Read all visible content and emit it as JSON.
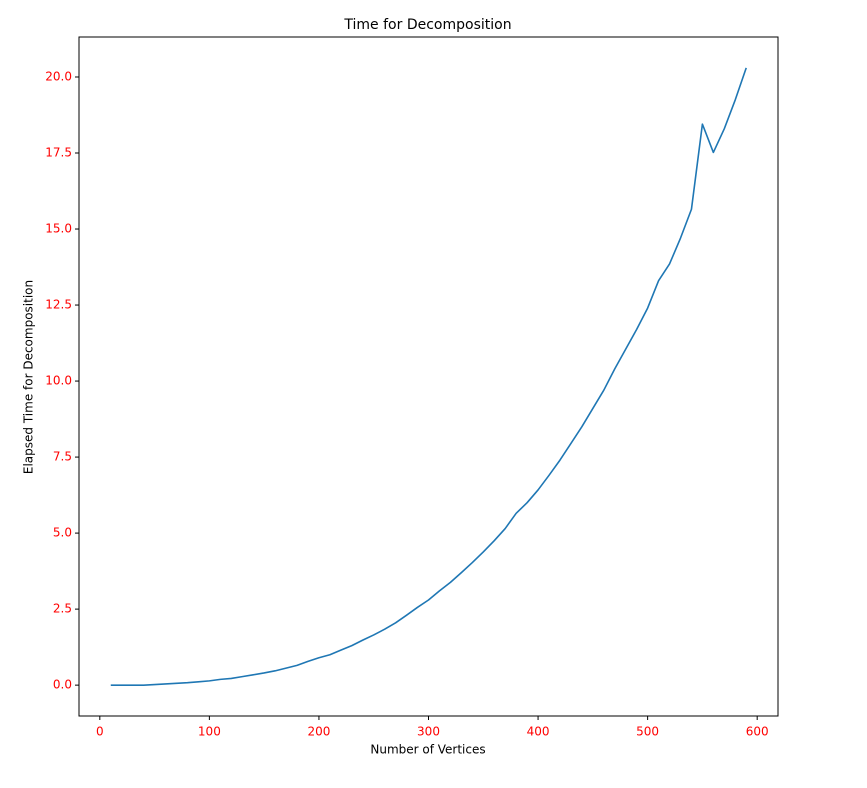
{
  "chart_data": {
    "type": "line",
    "title": "Time for Decomposition",
    "x_label": "Number of Vertices",
    "y_label": "Elapsed Time for Decomposition",
    "x": [
      10,
      20,
      30,
      40,
      50,
      60,
      70,
      80,
      90,
      100,
      110,
      120,
      130,
      140,
      150,
      160,
      170,
      180,
      190,
      200,
      210,
      220,
      230,
      240,
      250,
      260,
      270,
      280,
      290,
      300,
      310,
      320,
      330,
      340,
      350,
      360,
      370,
      380,
      390,
      400,
      410,
      420,
      430,
      440,
      450,
      460,
      470,
      480,
      490,
      500,
      510,
      520,
      530,
      540,
      550,
      560,
      570,
      580,
      590
    ],
    "values": [
      0.0,
      0.0,
      0.0,
      0.0,
      0.02,
      0.04,
      0.06,
      0.08,
      0.11,
      0.14,
      0.19,
      0.22,
      0.28,
      0.34,
      0.4,
      0.47,
      0.56,
      0.65,
      0.78,
      0.9,
      1.0,
      1.15,
      1.3,
      1.48,
      1.65,
      1.84,
      2.05,
      2.3,
      2.56,
      2.8,
      3.1,
      3.38,
      3.7,
      4.03,
      4.38,
      4.75,
      5.15,
      5.65,
      6.0,
      6.42,
      6.9,
      7.4,
      7.95,
      8.5,
      9.1,
      9.7,
      10.4,
      11.05,
      11.7,
      12.4,
      13.3,
      13.85,
      14.7,
      15.65,
      18.45,
      17.52,
      18.3,
      19.25,
      20.3
    ],
    "color": "#1f77b4",
    "tick_label_color": "red",
    "xlim": [
      -19,
      619
    ],
    "xticks": [
      0,
      100,
      200,
      300,
      400,
      500,
      600
    ],
    "ylim": [
      -1.015,
      21.315
    ],
    "yticks": [
      {
        "value": 0,
        "label": "0.0"
      },
      {
        "value": 2.5,
        "label": "2.5"
      },
      {
        "value": 5,
        "label": "5.0"
      },
      {
        "value": 7.5,
        "label": "7.5"
      },
      {
        "value": 10,
        "label": "10.0"
      },
      {
        "value": 12.5,
        "label": "12.5"
      },
      {
        "value": 15,
        "label": "15.0"
      },
      {
        "value": 17.5,
        "label": "17.5"
      },
      {
        "value": 20,
        "label": "20.0"
      }
    ]
  }
}
